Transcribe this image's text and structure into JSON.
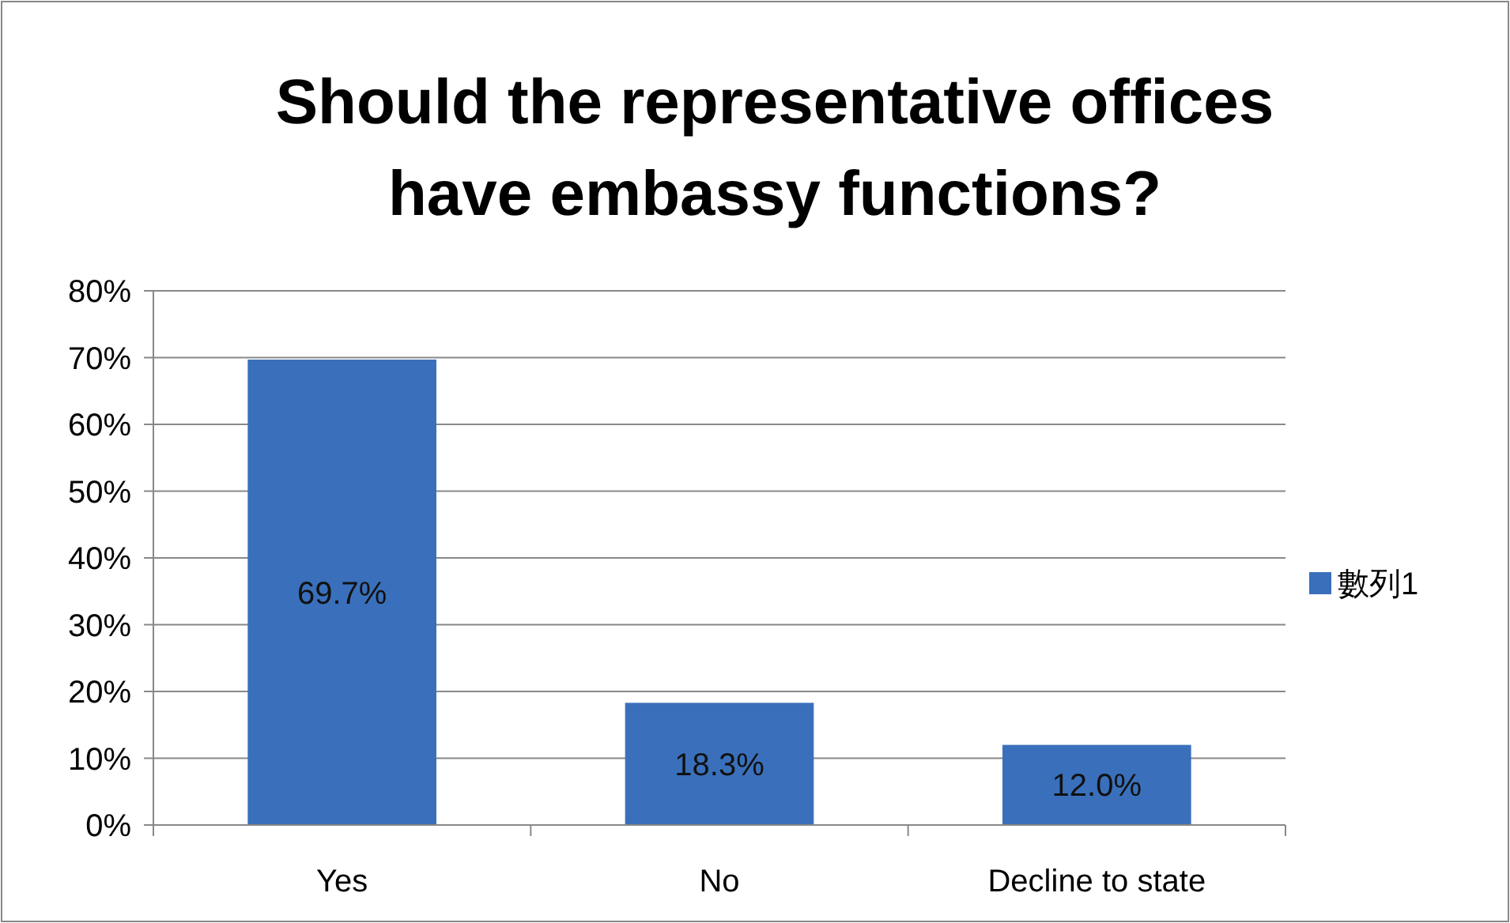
{
  "chart_data": {
    "type": "bar",
    "title": "Should the representative offices have embassy functions?",
    "categories": [
      "Yes",
      "No",
      "Decline to state"
    ],
    "series": [
      {
        "name": "數列1",
        "color": "#3a70bb",
        "values": [
          69.7,
          18.3,
          12.0
        ],
        "value_labels": [
          "69.7%",
          "18.3%",
          "12.0%"
        ]
      }
    ],
    "ylim": [
      0,
      80
    ],
    "yticks": [
      {
        "value": 0,
        "label": "0%"
      },
      {
        "value": 10,
        "label": "10%"
      },
      {
        "value": 20,
        "label": "20%"
      },
      {
        "value": 30,
        "label": "30%"
      },
      {
        "value": 40,
        "label": "40%"
      },
      {
        "value": 50,
        "label": "50%"
      },
      {
        "value": 60,
        "label": "60%"
      },
      {
        "value": 70,
        "label": "70%"
      },
      {
        "value": 80,
        "label": "80%"
      }
    ],
    "grid": "y",
    "legend": "right"
  }
}
